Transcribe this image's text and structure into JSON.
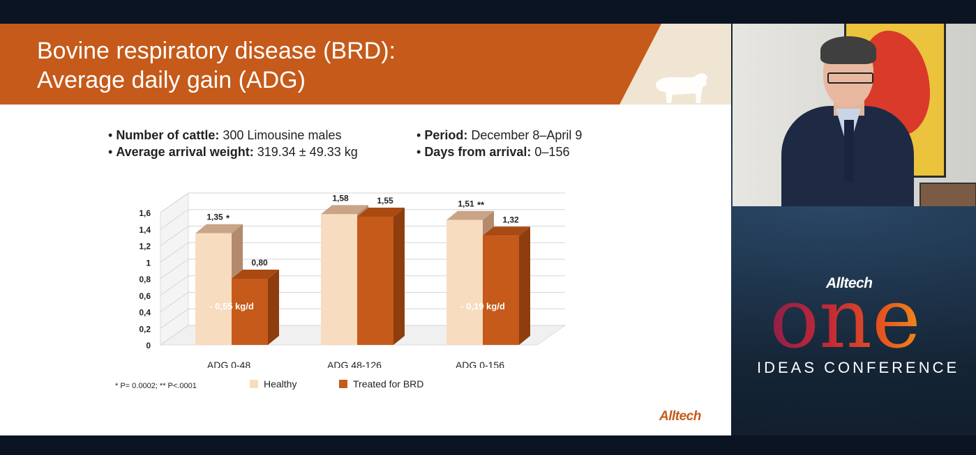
{
  "slide": {
    "title_line1": "Bovine respiratory disease (BRD):",
    "title_line2": "Average daily gain (ADG)",
    "bullets_left": [
      {
        "label": "Number of cattle:",
        "value": "300 Limousine males"
      },
      {
        "label": "Average arrival weight:",
        "value": "319.34 ± 49.33 kg"
      }
    ],
    "bullets_right": [
      {
        "label": "Period:",
        "value": "December 8–April 9"
      },
      {
        "label": "Days from arrival:",
        "value": "0–156"
      }
    ],
    "footnote": "* P= 0.0002; ** P<.0001",
    "brand": "Alltech",
    "colors": {
      "header": "#c55a1a",
      "healthy": "#f7dcc0",
      "treated": "#c55a1a"
    }
  },
  "chart_data": {
    "type": "bar",
    "categories": [
      "ADG 0-48",
      "ADG 48-126",
      "ADG 0-156"
    ],
    "series": [
      {
        "name": "Healthy",
        "values": [
          1.35,
          1.58,
          1.51
        ],
        "labels": [
          "1,35",
          "1,58",
          "1,51"
        ],
        "color": "#f7dcc0"
      },
      {
        "name": "Treated for BRD",
        "values": [
          0.8,
          1.55,
          1.32
        ],
        "labels": [
          "0,80",
          "1,55",
          "1,32"
        ],
        "color": "#c55a1a"
      }
    ],
    "significance": [
      "*",
      "",
      "**"
    ],
    "annotations": [
      "- 0,55 kg/d",
      "",
      "- 0,19 kg/d"
    ],
    "yticks": [
      "0",
      "0,2",
      "0,4",
      "0,6",
      "0,8",
      "1",
      "1,2",
      "1,4",
      "1,6"
    ],
    "ylim": [
      0,
      1.6
    ],
    "grid": true,
    "legend_position": "bottom"
  },
  "conference": {
    "brand": "Alltech",
    "word": "one",
    "subtitle": "IDEAS CONFERENCE"
  }
}
